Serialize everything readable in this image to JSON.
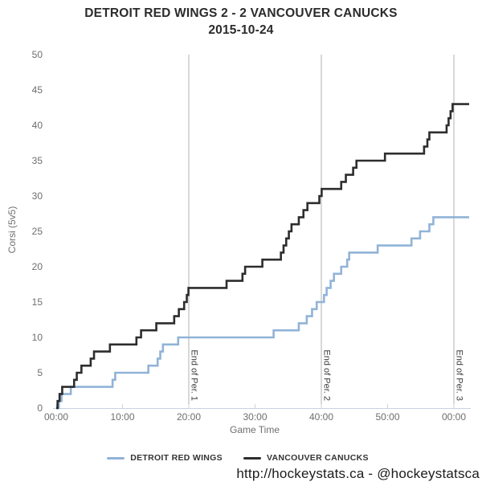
{
  "title": {
    "line1": "DETROIT RED WINGS 2 - 2 VANCOUVER CANUCKS",
    "line2": "2015-10-24"
  },
  "footer": {
    "credit": "http://hockeystats.ca - @hockeystatsca"
  },
  "legend": [
    {
      "label": "DETROIT RED WINGS",
      "color": "#91b3d7"
    },
    {
      "label": "VANCOUVER CANUCKS",
      "color": "#2d2d2d"
    }
  ],
  "colors": {
    "axis_line": "#c8d4e0",
    "tick_label": "#6e6e6e",
    "axis_title": "#6e6e6e",
    "period_line": "#b0b0b0",
    "period_label": "#3c3c3c",
    "detroit_line": "#91b3d7",
    "vancouver_line": "#2d2d2d"
  },
  "chart_data": {
    "type": "line",
    "step": true,
    "title": "DETROIT RED WINGS 2 - 2 VANCOUVER CANUCKS 2015-10-24",
    "xlabel": "Game Time",
    "ylabel": "Corsi (5v5)",
    "ylim": [
      0,
      50
    ],
    "y_tick_step": 5,
    "x_end_minute": 62.3,
    "grid": "off",
    "legend_position": "bottom",
    "x_ticks": [
      {
        "t": 0,
        "label": "00:00"
      },
      {
        "t": 10,
        "label": "10:00"
      },
      {
        "t": 20,
        "label": "20:00"
      },
      {
        "t": 30,
        "label": "30:00"
      },
      {
        "t": 40,
        "label": "40:00"
      },
      {
        "t": 50,
        "label": "50:00"
      },
      {
        "t": 60,
        "label": "00:00"
      }
    ],
    "period_lines": [
      {
        "t": 20,
        "label": "End of Per. 1"
      },
      {
        "t": 40,
        "label": "End of Per. 2"
      },
      {
        "t": 60,
        "label": "End of Per. 3"
      }
    ],
    "series": [
      {
        "name": "DETROIT RED WINGS",
        "color": "#91b3d7",
        "final_value": 27,
        "points": [
          [
            0,
            0
          ],
          [
            0.4,
            1
          ],
          [
            0.8,
            2
          ],
          [
            2.2,
            3
          ],
          [
            8.5,
            4
          ],
          [
            8.9,
            5
          ],
          [
            13.9,
            6
          ],
          [
            15.3,
            7
          ],
          [
            15.7,
            8
          ],
          [
            16.1,
            9
          ],
          [
            18.4,
            10
          ],
          [
            32.8,
            11
          ],
          [
            36.6,
            12
          ],
          [
            37.8,
            13
          ],
          [
            38.6,
            14
          ],
          [
            39.3,
            15
          ],
          [
            40.4,
            16
          ],
          [
            40.8,
            17
          ],
          [
            41.4,
            18
          ],
          [
            41.9,
            19
          ],
          [
            43.0,
            20
          ],
          [
            43.9,
            21
          ],
          [
            44.2,
            22
          ],
          [
            48.5,
            23
          ],
          [
            53.6,
            24
          ],
          [
            54.9,
            25
          ],
          [
            56.3,
            26
          ],
          [
            56.9,
            27
          ]
        ]
      },
      {
        "name": "VANCOUVER CANUCKS",
        "color": "#2d2d2d",
        "final_value": 43,
        "points": [
          [
            0,
            0
          ],
          [
            0.2,
            1
          ],
          [
            0.5,
            2
          ],
          [
            0.9,
            3
          ],
          [
            2.7,
            4
          ],
          [
            3.1,
            5
          ],
          [
            3.8,
            6
          ],
          [
            5.2,
            7
          ],
          [
            5.7,
            8
          ],
          [
            8.1,
            9
          ],
          [
            12.1,
            10
          ],
          [
            12.8,
            11
          ],
          [
            15.1,
            12
          ],
          [
            17.8,
            13
          ],
          [
            18.5,
            14
          ],
          [
            19.3,
            15
          ],
          [
            19.7,
            16
          ],
          [
            19.95,
            17
          ],
          [
            25.7,
            18
          ],
          [
            28.1,
            19
          ],
          [
            28.5,
            20
          ],
          [
            31.1,
            21
          ],
          [
            33.9,
            22
          ],
          [
            34.3,
            23
          ],
          [
            34.7,
            24
          ],
          [
            35.1,
            25
          ],
          [
            35.5,
            26
          ],
          [
            36.6,
            27
          ],
          [
            37.3,
            28
          ],
          [
            37.9,
            29
          ],
          [
            39.7,
            30
          ],
          [
            40.05,
            31
          ],
          [
            43.0,
            32
          ],
          [
            43.7,
            33
          ],
          [
            44.8,
            34
          ],
          [
            45.3,
            35
          ],
          [
            49.6,
            36
          ],
          [
            55.5,
            37
          ],
          [
            56.0,
            38
          ],
          [
            56.3,
            39
          ],
          [
            58.9,
            40
          ],
          [
            59.2,
            41
          ],
          [
            59.5,
            42
          ],
          [
            59.8,
            43
          ]
        ]
      }
    ]
  }
}
